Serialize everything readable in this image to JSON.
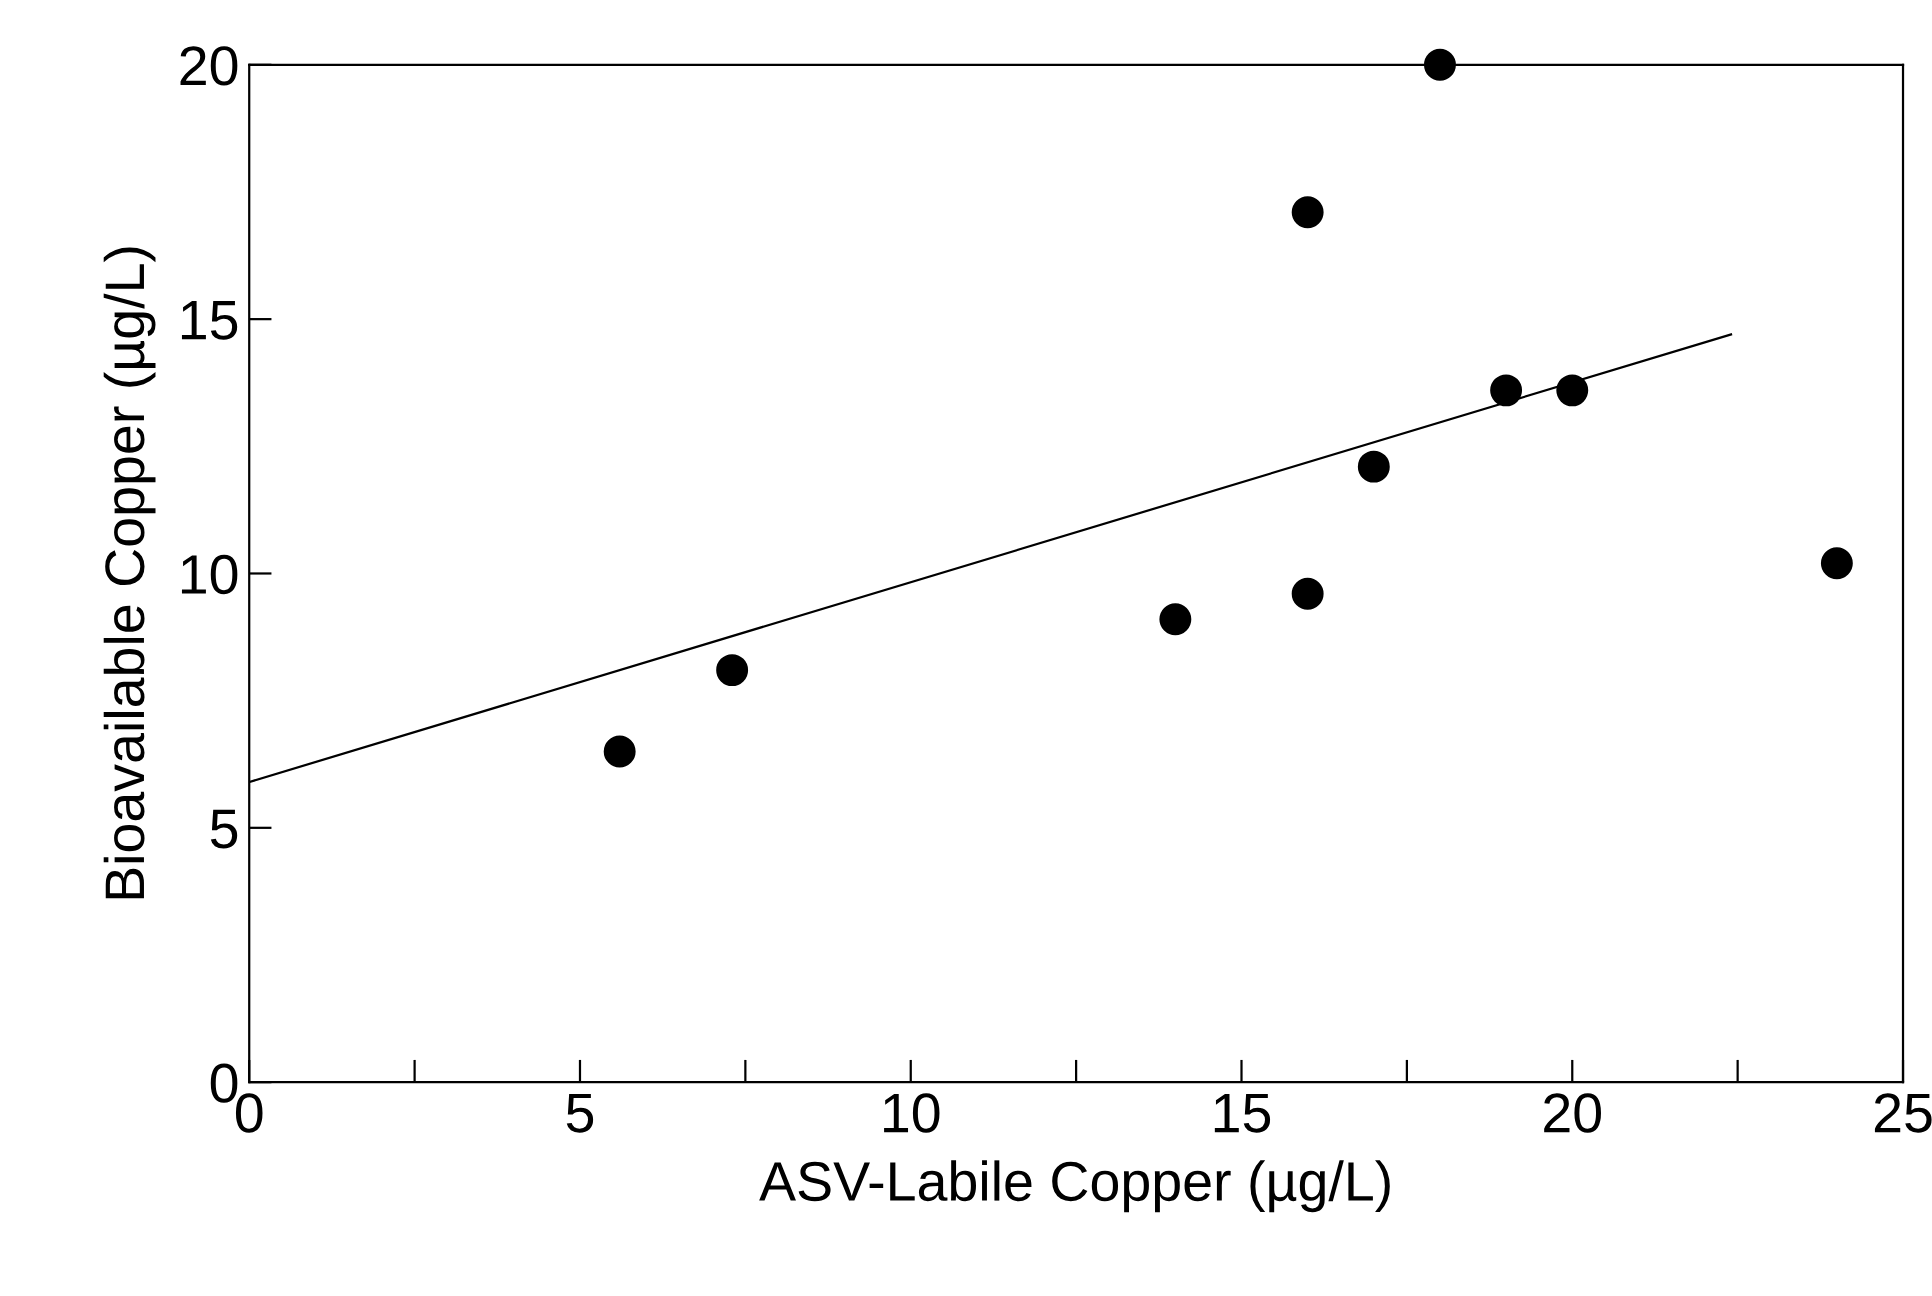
{
  "chart_data": {
    "type": "scatter",
    "xlabel": "ASV-Labile Copper (µg/L)",
    "ylabel": "Bioavailable Copper (µg/L)",
    "series": [
      {
        "color": "#000000",
        "marker": "circle",
        "x": [
          5.6,
          7.3,
          14.0,
          16.0,
          16.0,
          17.0,
          18.0,
          19.0,
          20.0,
          24.0
        ],
        "values": [
          6.5,
          8.1,
          9.1,
          9.6,
          17.1,
          12.1,
          20.0,
          13.6,
          13.6,
          10.2
        ]
      },
      {
        "type": "line",
        "color": "#000000",
        "marker": "none",
        "x": [
          0,
          22.4
        ],
        "values": [
          5.9,
          14.7
        ]
      }
    ],
    "xlim": [
      0,
      25
    ],
    "ylim": [
      0,
      20
    ],
    "xticks": [
      0,
      {
        "value": 2.5,
        "label": null
      },
      5,
      {
        "value": 7.5,
        "label": null
      },
      10,
      {
        "value": 12.5,
        "label": null
      },
      15,
      {
        "value": 17.5,
        "label": null
      },
      20,
      {
        "value": 22.5,
        "label": null
      },
      25
    ],
    "yticks": [
      0,
      5,
      10,
      15,
      20
    ],
    "grid": false,
    "legend": false
  }
}
